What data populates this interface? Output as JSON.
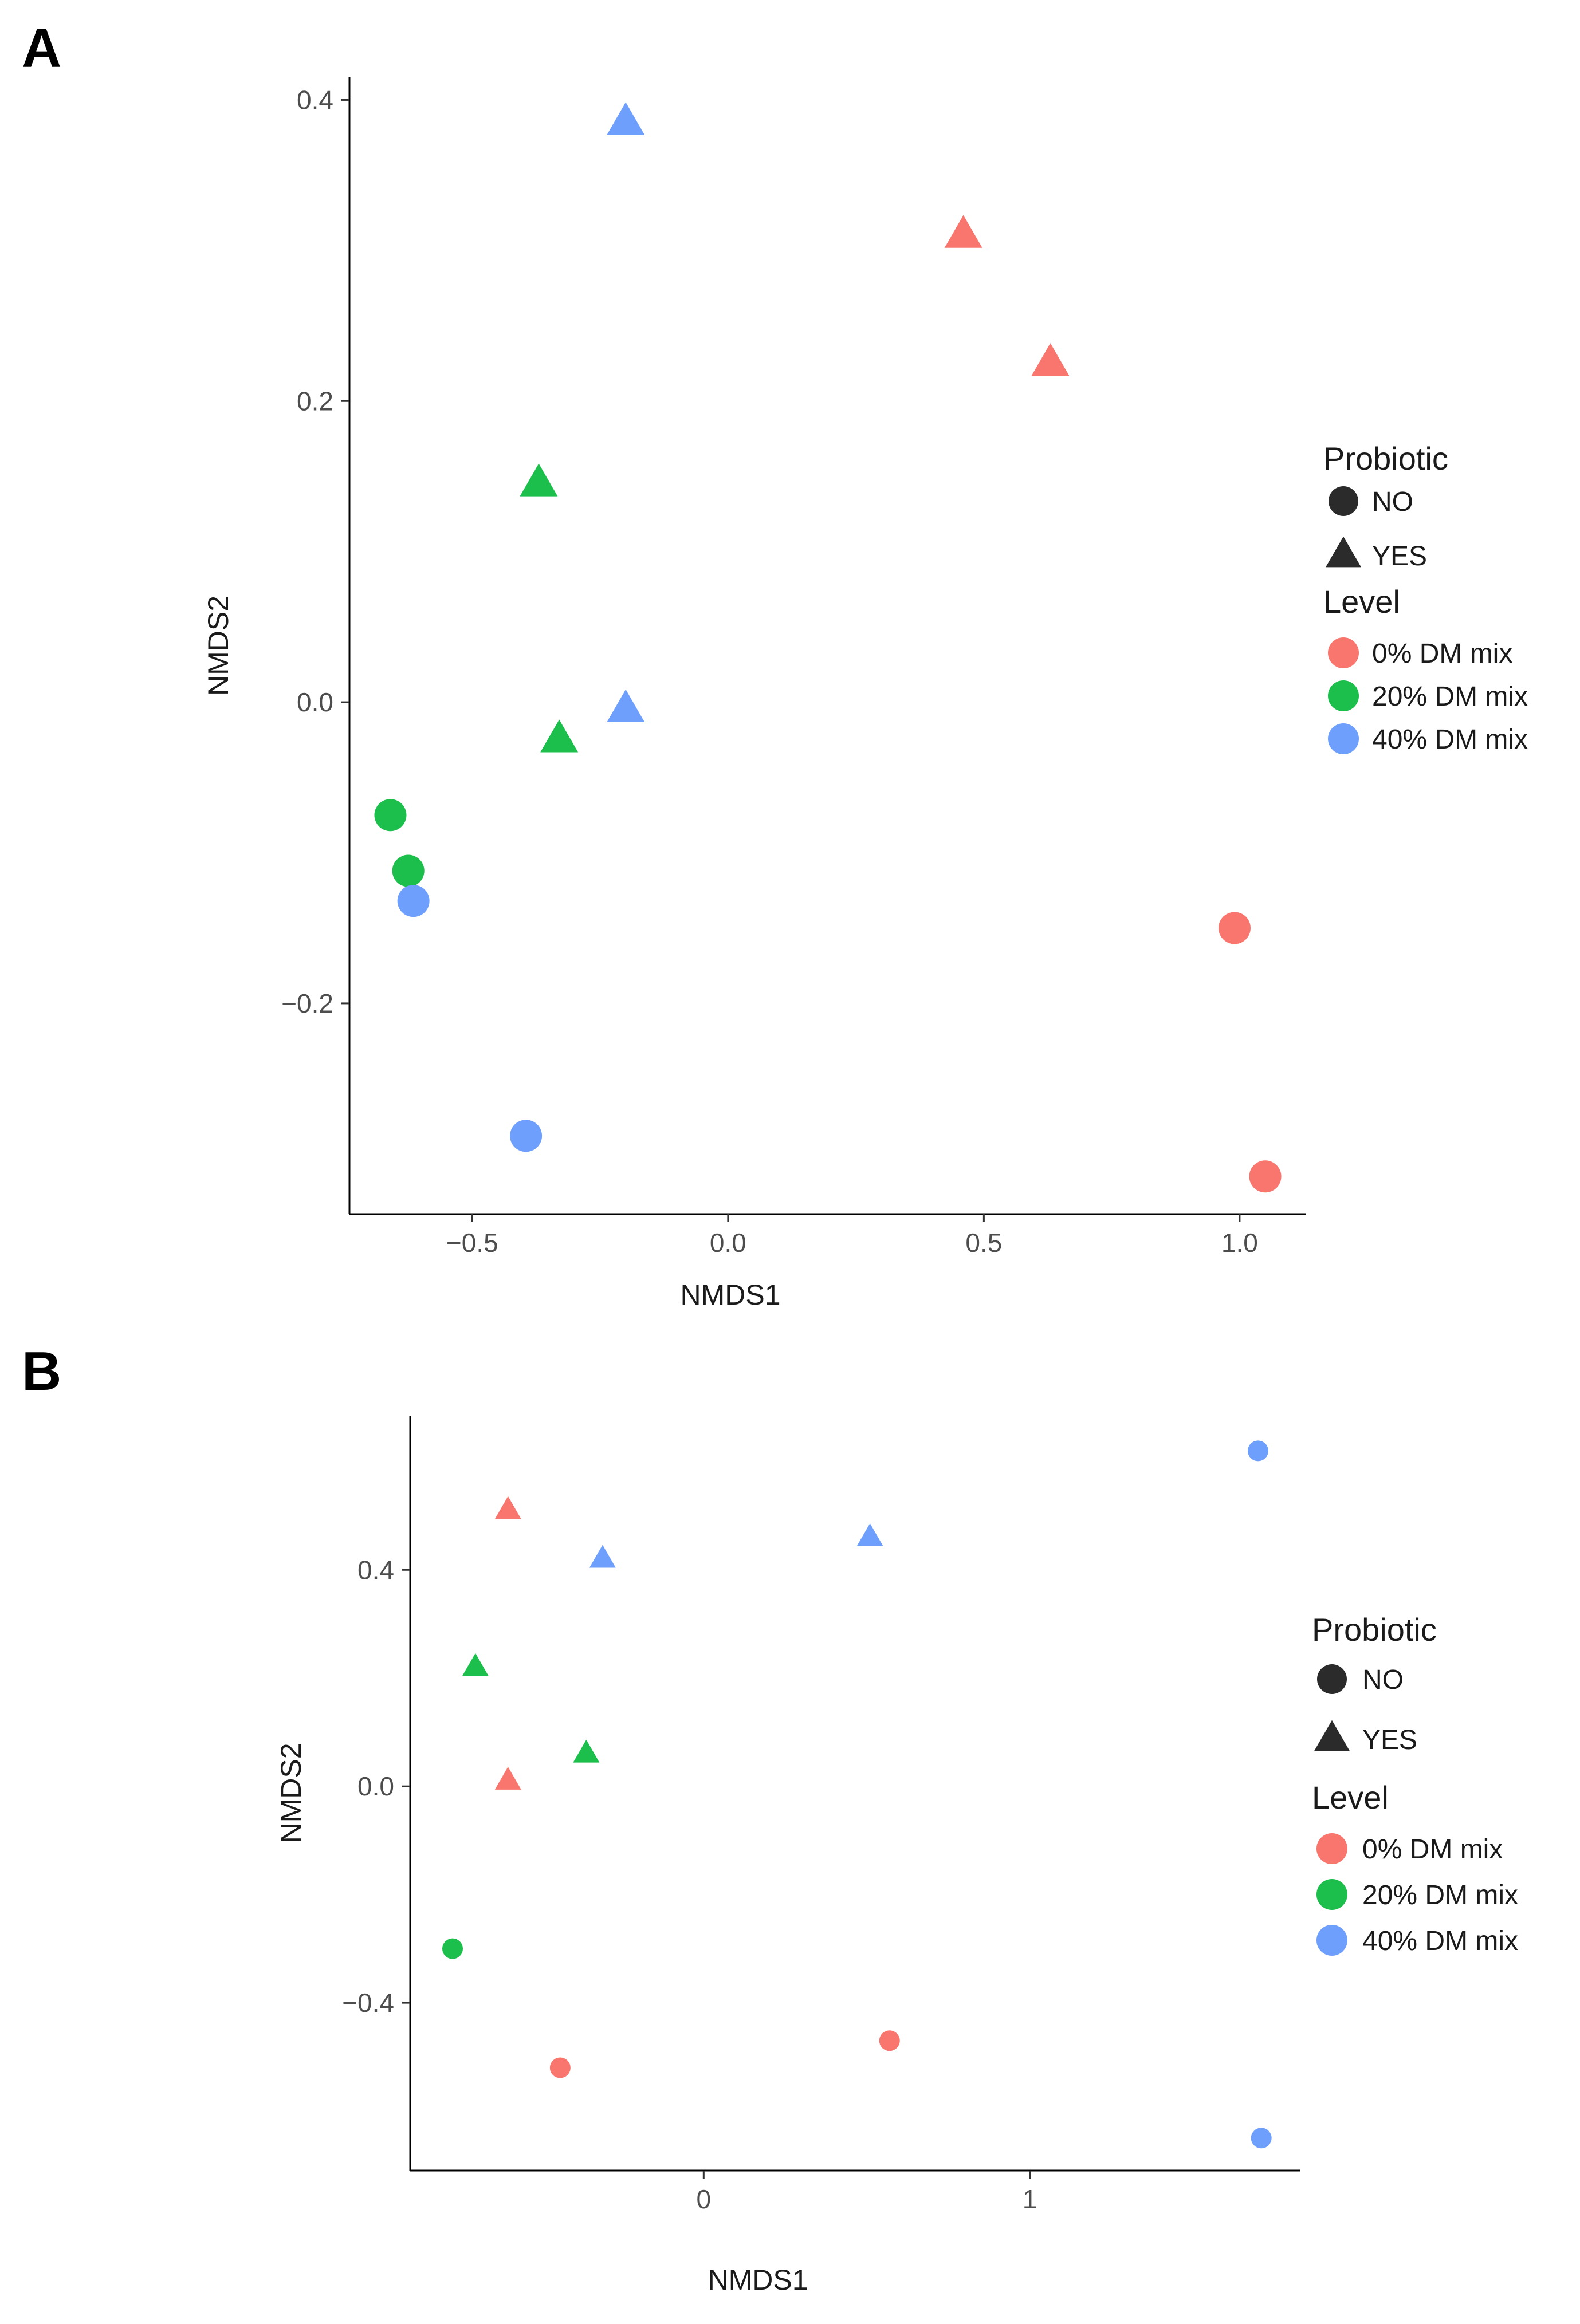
{
  "chart_data": [
    {
      "panel_label": "A",
      "type": "scatter",
      "xlabel": "NMDS1",
      "ylabel": "NMDS2",
      "xlim": [
        -0.74,
        1.13
      ],
      "ylim": [
        -0.34,
        0.415
      ],
      "xticks": [
        -0.5,
        0.0,
        0.5,
        1.0
      ],
      "xtick_labels": [
        "−0.5",
        "0.0",
        "0.5",
        "1.0"
      ],
      "yticks": [
        -0.2,
        0.0,
        0.2,
        0.4
      ],
      "ytick_labels": [
        "−0.2",
        "0.0",
        "0.2",
        "0.4"
      ],
      "legend": {
        "probiotic_title": "Probiotic",
        "probiotic_items": [
          {
            "label": "NO",
            "shape": "circle"
          },
          {
            "label": "YES",
            "shape": "triangle"
          }
        ],
        "level_title": "Level",
        "level_items": [
          {
            "label": "0% DM mix",
            "color": "#f8766d"
          },
          {
            "label": "20% DM mix",
            "color": "#1cbf4b"
          },
          {
            "label": "40% DM mix",
            "color": "#6f9ffc"
          }
        ]
      },
      "points": [
        {
          "x": -0.2,
          "y": 0.385,
          "probiotic": "YES",
          "level": "40% DM mix"
        },
        {
          "x": 0.46,
          "y": 0.31,
          "probiotic": "YES",
          "level": "0% DM mix"
        },
        {
          "x": 0.63,
          "y": 0.225,
          "probiotic": "YES",
          "level": "0% DM mix"
        },
        {
          "x": -0.37,
          "y": 0.145,
          "probiotic": "YES",
          "level": "20% DM mix"
        },
        {
          "x": -0.2,
          "y": -0.005,
          "probiotic": "YES",
          "level": "40% DM mix"
        },
        {
          "x": -0.33,
          "y": -0.025,
          "probiotic": "YES",
          "level": "20% DM mix"
        },
        {
          "x": -0.66,
          "y": -0.075,
          "probiotic": "NO",
          "level": "20% DM mix"
        },
        {
          "x": -0.625,
          "y": -0.112,
          "probiotic": "NO",
          "level": "20% DM mix"
        },
        {
          "x": -0.615,
          "y": -0.132,
          "probiotic": "NO",
          "level": "40% DM mix"
        },
        {
          "x": 0.99,
          "y": -0.15,
          "probiotic": "NO",
          "level": "0% DM mix"
        },
        {
          "x": -0.395,
          "y": -0.288,
          "probiotic": "NO",
          "level": "40% DM mix"
        },
        {
          "x": 1.05,
          "y": -0.315,
          "probiotic": "NO",
          "level": "0% DM mix"
        }
      ]
    },
    {
      "panel_label": "B",
      "type": "scatter",
      "xlabel": "NMDS1",
      "ylabel": "NMDS2",
      "xlim": [
        -0.9,
        1.83
      ],
      "ylim": [
        -0.71,
        0.685
      ],
      "xticks": [
        0,
        1
      ],
      "xtick_labels": [
        "0",
        "1"
      ],
      "yticks": [
        -0.4,
        0.0,
        0.4
      ],
      "ytick_labels": [
        "−0.4",
        "0.0",
        "0.4"
      ],
      "legend": {
        "probiotic_title": "Probiotic",
        "probiotic_items": [
          {
            "label": "NO",
            "shape": "circle"
          },
          {
            "label": "YES",
            "shape": "triangle"
          }
        ],
        "level_title": "Level",
        "level_items": [
          {
            "label": "0% DM mix",
            "color": "#f8766d"
          },
          {
            "label": "20% DM mix",
            "color": "#1cbf4b"
          },
          {
            "label": "40% DM mix",
            "color": "#6f9ffc"
          }
        ]
      },
      "points": [
        {
          "x": 1.7,
          "y": 0.62,
          "probiotic": "NO",
          "level": "40% DM mix"
        },
        {
          "x": -0.6,
          "y": 0.51,
          "probiotic": "YES",
          "level": "0% DM mix"
        },
        {
          "x": 0.51,
          "y": 0.46,
          "probiotic": "YES",
          "level": "40% DM mix"
        },
        {
          "x": -0.31,
          "y": 0.42,
          "probiotic": "YES",
          "level": "40% DM mix"
        },
        {
          "x": -0.7,
          "y": 0.22,
          "probiotic": "YES",
          "level": "20% DM mix"
        },
        {
          "x": -0.36,
          "y": 0.06,
          "probiotic": "YES",
          "level": "20% DM mix"
        },
        {
          "x": -0.6,
          "y": 0.01,
          "probiotic": "YES",
          "level": "0% DM mix"
        },
        {
          "x": -0.77,
          "y": -0.3,
          "probiotic": "NO",
          "level": "20% DM mix"
        },
        {
          "x": 0.57,
          "y": -0.47,
          "probiotic": "NO",
          "level": "0% DM mix"
        },
        {
          "x": -0.44,
          "y": -0.52,
          "probiotic": "NO",
          "level": "0% DM mix"
        },
        {
          "x": 1.71,
          "y": -0.65,
          "probiotic": "NO",
          "level": "40% DM mix"
        }
      ]
    }
  ]
}
